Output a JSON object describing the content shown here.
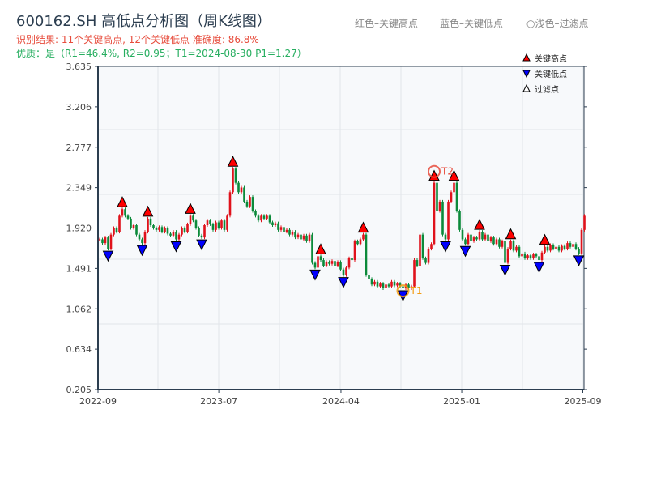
{
  "header": {
    "title": "600162.SH 高低点分析图（周K线图）",
    "result": "识别结果: 11个关键高点, 12个关键低点  准确度: 86.8%",
    "quality": "优质：是（R1=46.4%, R2=0.95；T1=2024-08-30 P1=1.27）",
    "hint_red": "红色–关键高点",
    "hint_blue": "蓝色–关键低点",
    "hint_light": "○浅色–过滤点"
  },
  "chart_data": {
    "type": "candlestick",
    "period": "weekly",
    "first_date": "2022-09-09",
    "ylim": [
      0.205,
      3.635
    ],
    "yticks": [
      "3.635",
      "3.206",
      "2.777",
      "2.349",
      "1.920",
      "1.491",
      "1.062",
      "0.634",
      "0.205"
    ],
    "xticks": [
      {
        "label": "2022-09",
        "week": 0
      },
      {
        "label": "2023-07",
        "week": 42.6
      },
      {
        "label": "2024-04",
        "week": 85.7
      },
      {
        "label": "2025-01",
        "week": 128.3
      },
      {
        "label": "2025-09",
        "week": 171
      }
    ],
    "grid": true,
    "legend": {
      "placement": "top-right",
      "items": [
        "关键高点",
        "关键低点",
        "过滤点"
      ]
    },
    "colors": {
      "up": "#e0121b",
      "down": "#0b8a3a",
      "high": "#ff0000",
      "low": "#0000ff",
      "t1": "#f39c12",
      "t2": "#e74c3c"
    },
    "close": [
      1.8,
      1.76,
      1.82,
      1.7,
      1.85,
      1.92,
      1.88,
      2.05,
      2.12,
      2.05,
      2.02,
      1.92,
      1.95,
      1.85,
      1.8,
      1.76,
      1.88,
      2.02,
      1.95,
      1.92,
      1.9,
      1.93,
      1.88,
      1.92,
      1.86,
      1.84,
      1.88,
      1.8,
      1.85,
      1.92,
      1.88,
      1.96,
      2.05,
      2.0,
      1.92,
      1.84,
      1.82,
      1.95,
      2.0,
      1.96,
      1.9,
      1.98,
      1.92,
      2.0,
      1.9,
      2.05,
      2.3,
      2.55,
      2.4,
      2.3,
      2.35,
      2.2,
      2.15,
      2.25,
      2.1,
      2.05,
      2.0,
      2.05,
      2.02,
      2.05,
      1.98,
      1.95,
      1.97,
      1.9,
      1.93,
      1.88,
      1.9,
      1.85,
      1.88,
      1.82,
      1.85,
      1.8,
      1.84,
      1.78,
      1.85,
      1.55,
      1.5,
      1.62,
      1.58,
      1.52,
      1.56,
      1.54,
      1.57,
      1.52,
      1.56,
      1.48,
      1.42,
      1.5,
      1.6,
      1.58,
      1.78,
      1.75,
      1.8,
      1.85,
      1.42,
      1.38,
      1.32,
      1.35,
      1.3,
      1.33,
      1.28,
      1.32,
      1.3,
      1.35,
      1.31,
      1.33,
      1.3,
      1.28,
      1.32,
      1.28,
      1.3,
      1.58,
      1.52,
      1.85,
      1.6,
      1.55,
      1.7,
      1.75,
      2.4,
      2.1,
      2.2,
      1.85,
      1.8,
      2.2,
      2.3,
      2.4,
      2.1,
      1.9,
      1.8,
      1.75,
      1.85,
      1.78,
      1.82,
      1.8,
      1.88,
      1.8,
      1.85,
      1.78,
      1.82,
      1.75,
      1.8,
      1.72,
      1.78,
      1.55,
      1.7,
      1.78,
      1.68,
      1.72,
      1.62,
      1.65,
      1.6,
      1.63,
      1.6,
      1.64,
      1.62,
      1.58,
      1.66,
      1.72,
      1.68,
      1.74,
      1.7,
      1.72,
      1.68,
      1.73,
      1.7,
      1.76,
      1.72,
      1.75,
      1.7,
      1.65,
      1.9,
      2.05
    ],
    "key_highs": [
      8,
      17,
      32,
      47,
      78,
      93,
      118,
      125,
      134,
      145,
      157
    ],
    "key_lows": [
      3,
      15,
      27,
      36,
      76,
      86,
      107,
      122,
      129,
      143,
      155,
      169
    ],
    "annotations": [
      {
        "label": "T1",
        "week": 107,
        "price": 1.27
      },
      {
        "label": "T2",
        "week": 118,
        "price": 2.52
      }
    ]
  }
}
